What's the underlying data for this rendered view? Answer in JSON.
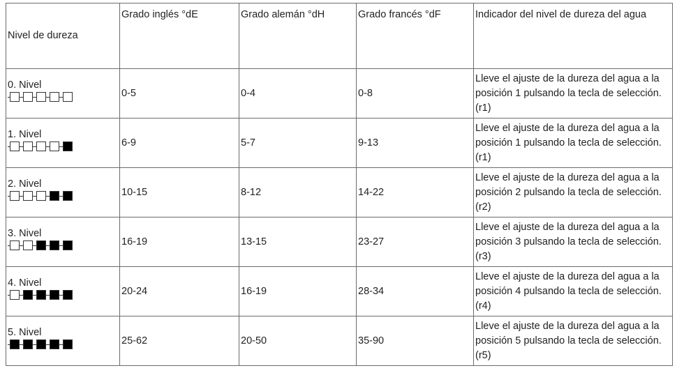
{
  "header": {
    "col1": "Nivel de dureza",
    "col2": "Grado inglés °dE",
    "col3": "Grado alemán °dH",
    "col4": "Grado francés °dF",
    "col5": "Indicador del nivel de dureza del agua"
  },
  "rows": [
    {
      "level": "0. Nivel",
      "filled": 0,
      "de": "0-5",
      "dh": "0-4",
      "df": "0-8",
      "desc": "Lleve el ajuste de la dureza del agua a la posición 1 pulsando la tecla de selección. (r1)"
    },
    {
      "level": "1. Nivel",
      "filled": 1,
      "de": "6-9",
      "dh": "5-7",
      "df": "9-13",
      "desc": "Lleve el ajuste de la dureza del agua a la posición 1 pulsando la tecla de selección. (r1)"
    },
    {
      "level": "2. Nivel",
      "filled": 2,
      "de": "10-15",
      "dh": "8-12",
      "df": "14-22",
      "desc": "Lleve el ajuste de la dureza del agua a la posición 2 pulsando la tecla de selección. (r2)"
    },
    {
      "level": "3. Nivel",
      "filled": 3,
      "de": "16-19",
      "dh": "13-15",
      "df": "23-27",
      "desc": "Lleve el ajuste de la dureza del agua a la posición 3 pulsando la tecla de selección. (r3)"
    },
    {
      "level": "4. Nivel",
      "filled": 4,
      "de": "20-24",
      "dh": "16-19",
      "df": "28-34",
      "desc": "Lleve el ajuste de la dureza del agua a la posición 4 pulsando la tecla de selección. (r4)"
    },
    {
      "level": "5. Nivel",
      "filled": 5,
      "de": "25-62",
      "dh": "20-50",
      "df": "35-90",
      "desc": "Lleve el ajuste de la dureza del agua a la posición 5 pulsando la tecla de selección. (r5)"
    }
  ],
  "indicator_segments": 5
}
